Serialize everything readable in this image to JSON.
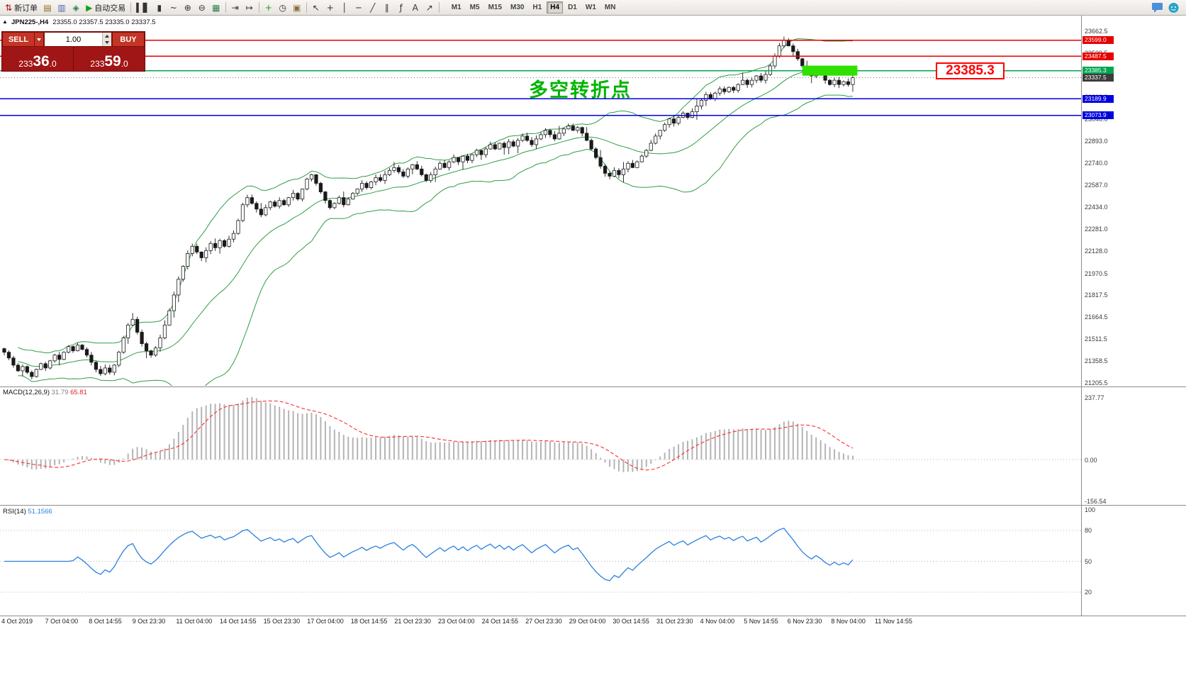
{
  "toolbar": {
    "buttons": [
      {
        "name": "new-order",
        "glyph": "⇅",
        "color": "#b00000",
        "label": "新订单"
      },
      {
        "name": "charts-window",
        "glyph": "▤",
        "color": "#8a6d1d"
      },
      {
        "name": "profiles",
        "glyph": "▥",
        "color": "#4a66aa"
      },
      {
        "name": "refresh",
        "glyph": "◈",
        "color": "#2f7f4f"
      },
      {
        "name": "autotrading",
        "glyph": "▶",
        "color": "#1c9e1c",
        "label": "自动交易"
      },
      {
        "sep": true
      },
      {
        "name": "bar-chart",
        "glyph": "▍▋",
        "color": "#333333"
      },
      {
        "name": "candle-chart",
        "glyph": "▮",
        "color": "#333333"
      },
      {
        "name": "line-chart",
        "glyph": "~",
        "color": "#333333"
      },
      {
        "name": "zoom-in",
        "glyph": "⊕",
        "color": "#333333"
      },
      {
        "name": "zoom-out",
        "glyph": "⊖",
        "color": "#333333"
      },
      {
        "name": "tile-windows",
        "glyph": "▦",
        "color": "#2f7f4f"
      },
      {
        "sep": true
      },
      {
        "name": "auto-scroll",
        "glyph": "⇥",
        "color": "#333333"
      },
      {
        "name": "chart-shift",
        "glyph": "↦",
        "color": "#333333"
      },
      {
        "sep": true
      },
      {
        "name": "add-indicator",
        "glyph": "+",
        "color": "#1c9e1c"
      },
      {
        "name": "periods",
        "glyph": "◷",
        "color": "#333333"
      },
      {
        "name": "templates",
        "glyph": "▣",
        "color": "#8a6d3b"
      },
      {
        "sep": true
      },
      {
        "name": "cursor",
        "glyph": "↖",
        "color": "#333333"
      },
      {
        "name": "crosshair",
        "glyph": "+",
        "color": "#333333"
      },
      {
        "name": "vertical-line",
        "glyph": "│",
        "color": "#333333"
      },
      {
        "name": "horizontal-line",
        "glyph": "─",
        "color": "#333333"
      },
      {
        "name": "trendline",
        "glyph": "╱",
        "color": "#333333"
      },
      {
        "name": "equidistant-channel",
        "glyph": "∥",
        "color": "#333333"
      },
      {
        "name": "fibonacci",
        "glyph": "ƒ",
        "color": "#333333"
      },
      {
        "name": "text",
        "glyph": "A",
        "color": "#333333"
      },
      {
        "name": "arrows",
        "glyph": "↗",
        "color": "#333333"
      },
      {
        "sep": true
      }
    ],
    "timeframes": [
      "M1",
      "M5",
      "M15",
      "M30",
      "H1",
      "H4",
      "D1",
      "W1",
      "MN"
    ],
    "active_timeframe": "H4"
  },
  "chart": {
    "toggle_glyph": "▲",
    "symbol_title": "JPN225-,H4",
    "ohlc": "23355.0 23357.5 23335.0 23337.5",
    "annotation": {
      "text": "多空转折点",
      "color": "#00b400"
    },
    "callout": {
      "text": "23385.3",
      "color": "#ff0000"
    }
  },
  "trade_panel": {
    "sell_label": "SELL",
    "buy_label": "BUY",
    "volume": "1.00",
    "sell_price": "23336.0",
    "buy_price": "23359.0"
  },
  "macd": {
    "name": "MACD(12,26,9)",
    "main_value": "31.79",
    "signal_value": "65.81",
    "main_color": "#7f7f7f",
    "signal_color": "#e02020",
    "axis_labels": [
      "237.77",
      "0.00",
      "-156.54"
    ]
  },
  "rsi": {
    "name": "RSI(14)",
    "value": "51.1566",
    "color": "#2a7fde",
    "axis_labels": [
      "100",
      "80",
      "50",
      "20"
    ]
  },
  "chart_data": {
    "type": "candlestick",
    "symbol": "JPN225-",
    "timeframe": "H4",
    "price_axis_ticks": [
      23662.5,
      23509.5,
      23356.5,
      23203.0,
      23046.0,
      22893.0,
      22740.0,
      22587.0,
      22434.0,
      22281.0,
      22128.0,
      21970.5,
      21817.5,
      21664.5,
      21511.5,
      21358.5,
      21205.5
    ],
    "levels": [
      {
        "price": 23599.0,
        "label": "23599.0",
        "color": "#e60000",
        "style": "solid"
      },
      {
        "price": 23487.5,
        "label": "23487.5",
        "color": "#e60000",
        "style": "solid"
      },
      {
        "price": 23385.3,
        "label": "23385.3",
        "color": "#00a651",
        "style": "solid"
      },
      {
        "price": 23337.5,
        "label": "23337.5",
        "color": "#3c3c3c",
        "style": "dotted"
      },
      {
        "price": 23189.9,
        "label": "23189.9",
        "color": "#0000e0",
        "style": "solid"
      },
      {
        "price": 23073.9,
        "label": "23073.9",
        "color": "#0000e0",
        "style": "solid"
      }
    ],
    "highlight_rect": {
      "bar_start": 174,
      "bar_end": 186,
      "price_top": 23422,
      "price_bottom": 23352,
      "color": "#2fe000"
    },
    "bollinger": {
      "period": 20,
      "deviation": 2,
      "color": "#2f9e44"
    },
    "macd_params": {
      "fast": 12,
      "slow": 26,
      "signal": 9
    },
    "rsi_params": {
      "period": 14,
      "levels": [
        80,
        50,
        20
      ]
    },
    "peak_wick": 23625,
    "trough_wick": 21230,
    "candles_close": [
      21420,
      21380,
      21330,
      21290,
      21320,
      21280,
      21250,
      21300,
      21340,
      21310,
      21360,
      21400,
      21370,
      21420,
      21460,
      21430,
      21470,
      21440,
      21400,
      21350,
      21300,
      21270,
      21310,
      21280,
      21330,
      21420,
      21520,
      21610,
      21650,
      21560,
      21480,
      21430,
      21400,
      21450,
      21520,
      21610,
      21710,
      21820,
      21930,
      22020,
      22110,
      22160,
      22120,
      22080,
      22130,
      22180,
      22150,
      22200,
      22160,
      22210,
      22250,
      22340,
      22450,
      22500,
      22460,
      22420,
      22380,
      22430,
      22470,
      22440,
      22480,
      22450,
      22500,
      22530,
      22490,
      22560,
      22630,
      22660,
      22600,
      22540,
      22480,
      22430,
      22460,
      22500,
      22450,
      22490,
      22530,
      22560,
      22600,
      22570,
      22610,
      22640,
      22620,
      22660,
      22690,
      22710,
      22680,
      22650,
      22700,
      22730,
      22700,
      22660,
      22620,
      22660,
      22700,
      22740,
      22710,
      22750,
      22780,
      22750,
      22790,
      22760,
      22800,
      22830,
      22800,
      22840,
      22870,
      22840,
      22880,
      22850,
      22890,
      22860,
      22900,
      22930,
      22900,
      22870,
      22910,
      22940,
      22970,
      22940,
      22910,
      22950,
      22980,
      23000,
      22970,
      22990,
      22950,
      22900,
      22840,
      22780,
      22720,
      22670,
      22650,
      22690,
      22660,
      22700,
      22740,
      22710,
      22750,
      22790,
      22830,
      22880,
      22930,
      22970,
      23010,
      23050,
      23020,
      23060,
      23090,
      23060,
      23100,
      23140,
      23180,
      23220,
      23190,
      23230,
      23260,
      23240,
      23270,
      23250,
      23290,
      23320,
      23290,
      23320,
      23350,
      23320,
      23360,
      23420,
      23490,
      23560,
      23600,
      23560,
      23520,
      23470,
      23420,
      23380,
      23350,
      23390,
      23360,
      23320,
      23290,
      23320,
      23290,
      23310,
      23290,
      23337.5
    ],
    "time_axis": [
      "4 Oct 2019",
      "7 Oct 04:00",
      "8 Oct 14:55",
      "9 Oct 23:30",
      "11 Oct 04:00",
      "14 Oct 14:55",
      "15 Oct 23:30",
      "17 Oct 04:00",
      "18 Oct 14:55",
      "21 Oct 23:30",
      "23 Oct 04:00",
      "24 Oct 14:55",
      "27 Oct 23:30",
      "29 Oct 04:00",
      "30 Oct 14:55",
      "31 Oct 23:30",
      "4 Nov 04:00",
      "5 Nov 14:55",
      "6 Nov 23:30",
      "8 Nov 04:00",
      "11 Nov 14:55"
    ]
  }
}
